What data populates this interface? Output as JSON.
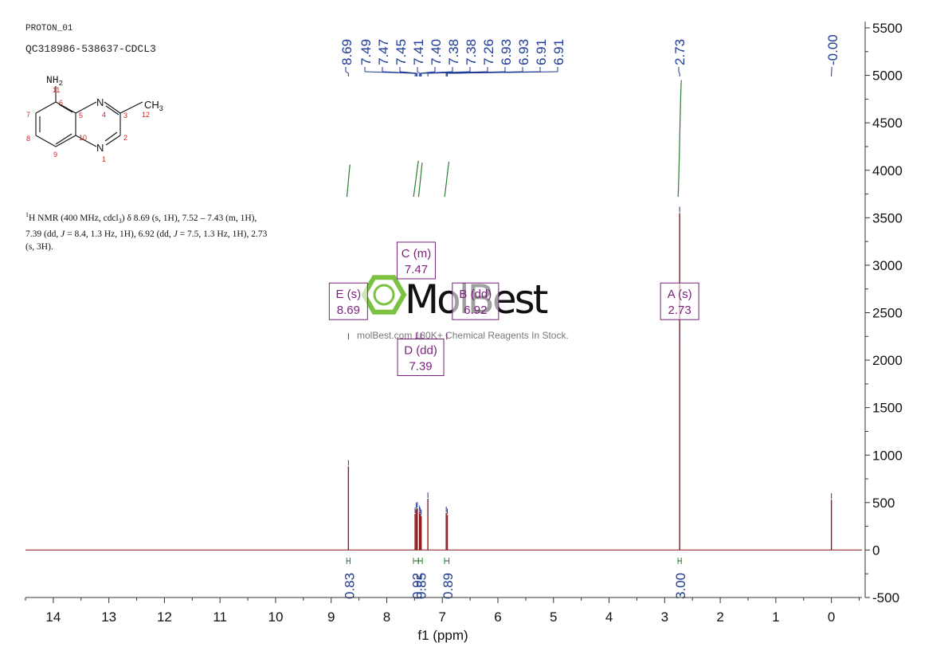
{
  "header": {
    "experiment": "PROTON_01",
    "sample": "QC318986-538637-CDCL3"
  },
  "description": {
    "sup": "1",
    "lead": "H NMR (400 MHz, cdcl",
    "sub": "3",
    "body1": ") δ 8.69 (s, 1H), 7.52 – 7.43 (m, 1H),",
    "line2a": "7.39 (dd, ",
    "j": "J",
    "line2b": " = 8.4, 1.3 Hz, 1H), 6.92 (dd, ",
    "line2c": " = 7.5, 1.3 Hz, 1H), 2.73",
    "line3": "(s, 3H)."
  },
  "molecule": {
    "nh2": "NH",
    "nh2_sub": "2",
    "ch3": "CH",
    "ch3_sub": "3",
    "n_top": "N",
    "n_bottom": "N",
    "numbers": [
      "11",
      "6",
      "5",
      "4",
      "3",
      "12",
      "7",
      "8",
      "10",
      "2",
      "9",
      "1"
    ]
  },
  "watermark": {
    "brand": "MolBest",
    "tagline": "molBest.com   180K+ Chemical Reagents In Stock."
  },
  "colors": {
    "spectrum": "#8b1a1a",
    "peak_labels": "#1f3a93",
    "integral": "#2e7d32",
    "multiplet": "#7b1f7b",
    "axis": "#333333",
    "watermark_green": "#7cc242"
  },
  "chart_data": {
    "type": "line",
    "xlabel": "f1 (ppm)",
    "ylabel": "",
    "xlim": [
      14.5,
      -0.55
    ],
    "ylim": [
      -500,
      5500
    ],
    "x_reversed": true,
    "x_ticks": [
      "14",
      "13",
      "12",
      "11",
      "10",
      "9",
      "8",
      "7",
      "6",
      "5",
      "4",
      "3",
      "2",
      "1",
      "0"
    ],
    "y_ticks": [
      "-500",
      "0",
      "500",
      "1000",
      "1500",
      "2000",
      "2500",
      "3000",
      "3500",
      "4000",
      "4500",
      "5000",
      "5500"
    ],
    "y_axis_position": "right",
    "peak_labels": [
      "8.69",
      "7.49",
      "7.47",
      "7.45",
      "7.41",
      "7.40",
      "7.38",
      "7.38",
      "7.26",
      "6.93",
      "6.93",
      "6.91",
      "6.91",
      "2.73",
      "-0.00"
    ],
    "peaks": [
      {
        "ppm": 8.69,
        "height": 880
      },
      {
        "ppm": 7.49,
        "height": 380
      },
      {
        "ppm": 7.47,
        "height": 430
      },
      {
        "ppm": 7.45,
        "height": 440
      },
      {
        "ppm": 7.41,
        "height": 400
      },
      {
        "ppm": 7.4,
        "height": 380
      },
      {
        "ppm": 7.38,
        "height": 360
      },
      {
        "ppm": 7.26,
        "height": 540
      },
      {
        "ppm": 6.93,
        "height": 390
      },
      {
        "ppm": 6.91,
        "height": 370
      },
      {
        "ppm": 2.73,
        "height": 3550
      },
      {
        "ppm": 0.0,
        "height": 530
      }
    ],
    "integrals": [
      {
        "from": 8.72,
        "to": 8.66,
        "value": "0.83",
        "label_ppm": 8.69
      },
      {
        "from": 7.52,
        "to": 7.43,
        "value": "0.92",
        "label_ppm": 7.47
      },
      {
        "from": 7.43,
        "to": 7.36,
        "value": "0.85",
        "label_ppm": 7.4
      },
      {
        "from": 6.96,
        "to": 6.88,
        "value": "0.89",
        "label_ppm": 6.92
      },
      {
        "from": 2.76,
        "to": 2.7,
        "value": "3.00",
        "label_ppm": 2.73
      }
    ],
    "integral_curves": [
      {
        "from": 8.72,
        "to": 8.66,
        "low": 3720,
        "high": 4060
      },
      {
        "from": 7.52,
        "to": 7.43,
        "low": 3720,
        "high": 4100
      },
      {
        "from": 7.43,
        "to": 7.36,
        "low": 3720,
        "high": 4080
      },
      {
        "from": 6.96,
        "to": 6.88,
        "low": 3720,
        "high": 4090
      },
      {
        "from": 2.76,
        "to": 2.7,
        "low": 3720,
        "high": 4950
      }
    ],
    "multiplets": [
      {
        "title": "E (s)",
        "value": "8.69",
        "ppm": 8.69,
        "y": 2620
      },
      {
        "title": "C (m)",
        "value": "7.47",
        "ppm": 7.47,
        "y": 3050
      },
      {
        "title": "B (dd)",
        "value": "6.92",
        "ppm": 6.92,
        "y": 2620
      },
      {
        "title": "D (dd)",
        "value": "7.39",
        "ppm": 7.39,
        "y": 2030
      },
      {
        "title": "A (s)",
        "value": "2.73",
        "ppm": 2.73,
        "y": 2620
      }
    ]
  }
}
